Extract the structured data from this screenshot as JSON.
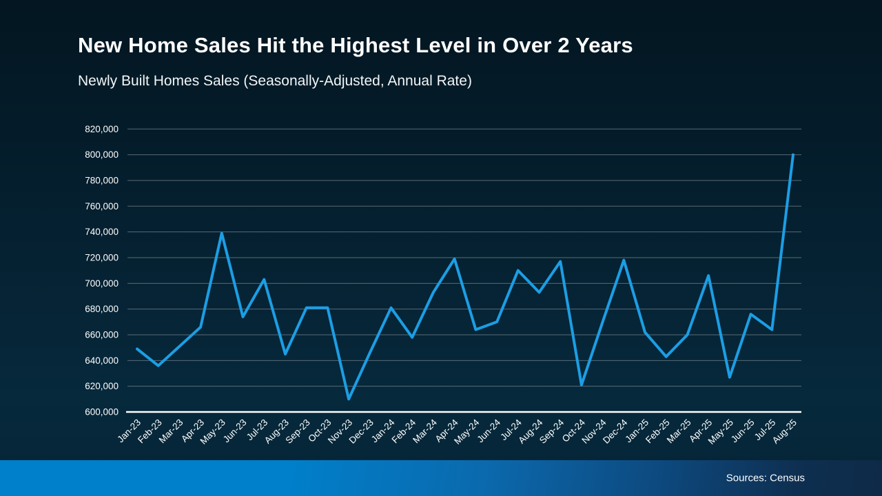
{
  "slide": {
    "title": "New Home Sales Hit the Highest Level in Over 2 Years",
    "subtitle": "Newly Built Homes Sales (Seasonally-Adjusted, Annual Rate)",
    "source_note": "Sources: Census"
  },
  "chart_data": {
    "type": "line",
    "title": "New Home Sales Hit the Highest Level in Over 2 Years",
    "subtitle": "Newly Built Homes Sales (Seasonally-Adjusted, Annual Rate)",
    "series_name": "New home sales, seasonally-adjusted annual rate",
    "categories": [
      "Jan-23",
      "Feb-23",
      "Mar-23",
      "Apr-23",
      "May-23",
      "Jun-23",
      "Jul-23",
      "Aug-23",
      "Sep-23",
      "Oct-23",
      "Nov-23",
      "Dec-23",
      "Jan-24",
      "Feb-24",
      "Mar-24",
      "Apr-24",
      "May-24",
      "Jun-24",
      "Jul-24",
      "Aug-24",
      "Sep-24",
      "Oct-24",
      "Nov-24",
      "Dec-24",
      "Jan-25",
      "Feb-25",
      "Mar-25",
      "Apr-25",
      "May-25",
      "Jun-25",
      "Jul-25",
      "Aug-25"
    ],
    "values": [
      649000,
      636000,
      651000,
      666000,
      739000,
      674000,
      703000,
      645000,
      681000,
      681000,
      610000,
      646000,
      681000,
      658000,
      693000,
      719000,
      664000,
      670000,
      710000,
      693000,
      717000,
      621000,
      670000,
      718000,
      662000,
      643000,
      660000,
      706000,
      627000,
      676000,
      664000,
      800000
    ],
    "ylim": [
      600000,
      820000
    ],
    "ytick_step": 20000,
    "ytick_labels": [
      "600,000",
      "620,000",
      "640,000",
      "660,000",
      "680,000",
      "700,000",
      "720,000",
      "740,000",
      "760,000",
      "780,000",
      "800,000",
      "820,000"
    ],
    "grid": "horizontal",
    "legend": "none",
    "line_color": "#1c9ee4",
    "gridline_color": "#76828c",
    "axis_color": "#ffffff",
    "tick_label_color": "#ffffff",
    "source": "Sources: Census"
  }
}
